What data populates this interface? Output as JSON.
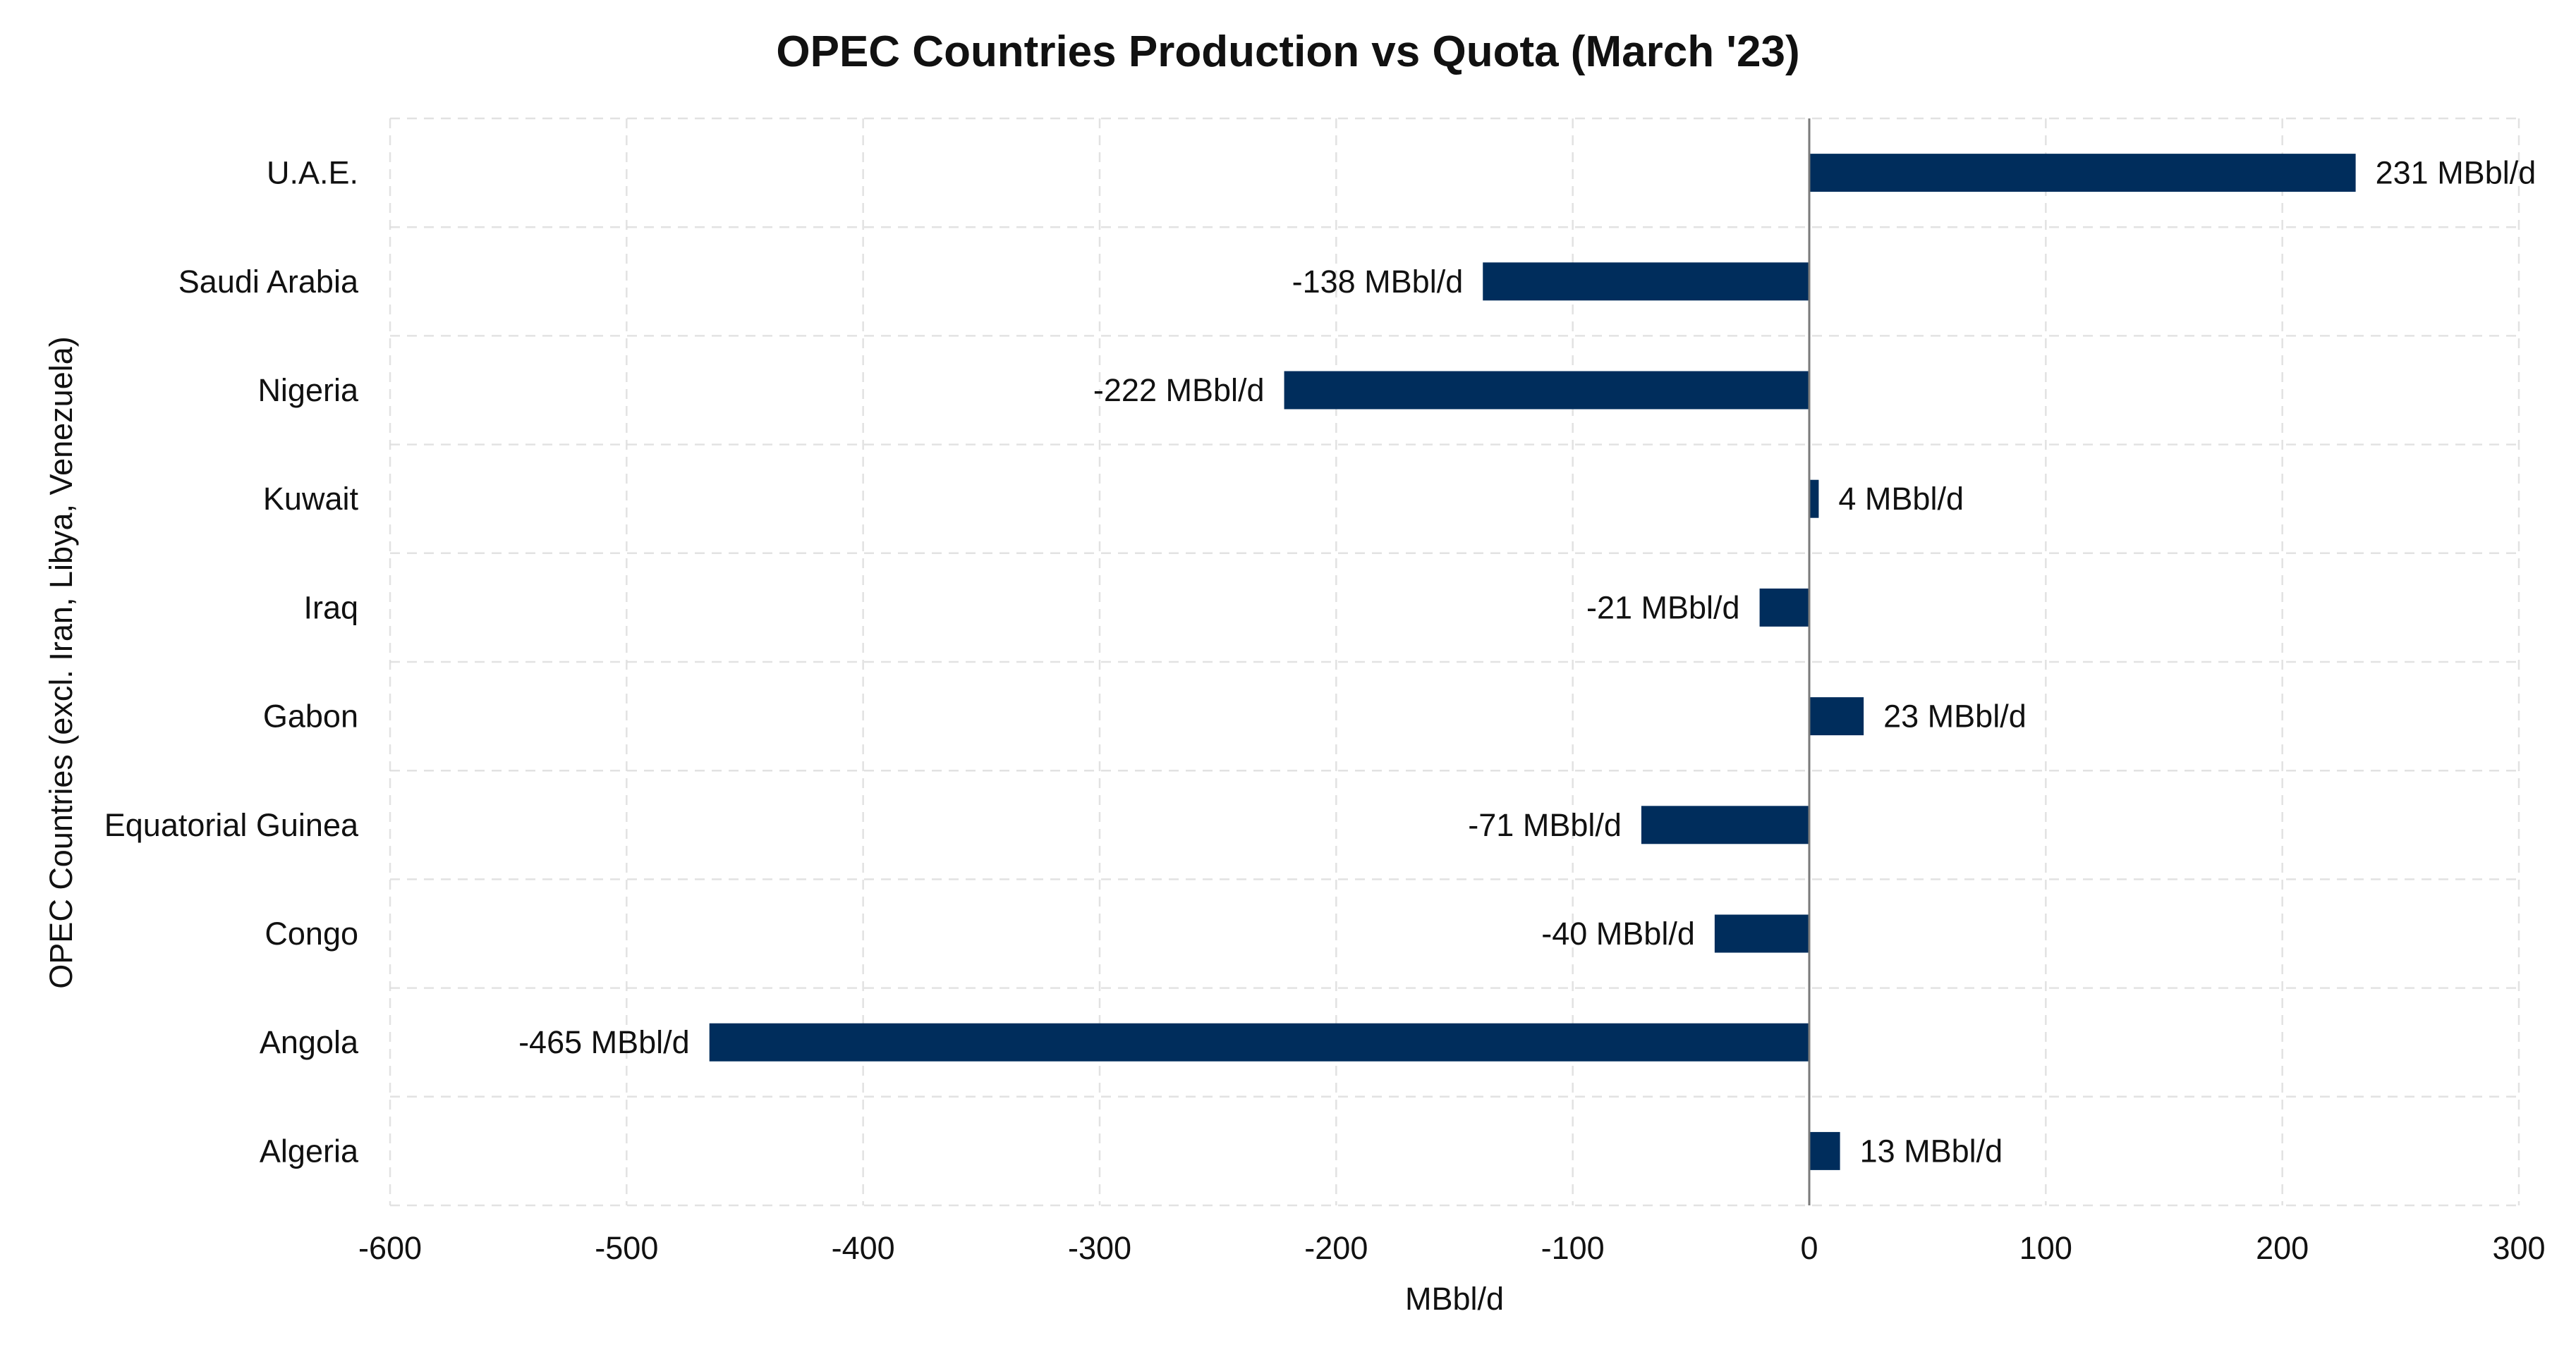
{
  "chart_data": {
    "type": "bar",
    "orientation": "horizontal",
    "title": "OPEC Countries Production vs Quota (March '23)",
    "xlabel": "MBbl/d",
    "ylabel": "OPEC Countries (excl. Iran, Libya, Venezuela)",
    "xlim": [
      -600,
      300
    ],
    "xticks": [
      -600,
      -500,
      -400,
      -300,
      -200,
      -100,
      0,
      100,
      200,
      300
    ],
    "grid": true,
    "bar_color": "#002d5c",
    "value_suffix": " MBbl/d",
    "categories": [
      "U.A.E.",
      "Saudi Arabia",
      "Nigeria",
      "Kuwait",
      "Iraq",
      "Gabon",
      "Equatorial Guinea",
      "Congo",
      "Angola",
      "Algeria"
    ],
    "values": [
      231,
      -138,
      -222,
      4,
      -21,
      23,
      -71,
      -40,
      -465,
      13
    ],
    "data_labels": [
      "231 MBbl/d",
      "-138 MBbl/d",
      "-222 MBbl/d",
      "4 MBbl/d",
      "-21 MBbl/d",
      "23 MBbl/d",
      "-71 MBbl/d",
      "-40 MBbl/d",
      "-465 MBbl/d",
      "13 MBbl/d"
    ]
  }
}
